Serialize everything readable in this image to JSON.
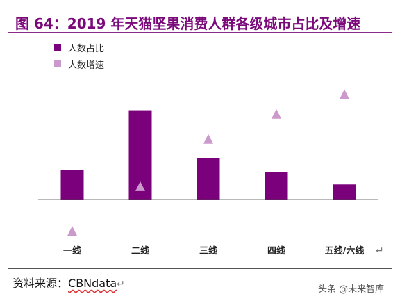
{
  "header": {
    "title": "图 64：2019 年天猫坚果消费人群各级城市占比及增速"
  },
  "chart_data": {
    "type": "bar",
    "categories": [
      "一线",
      "二线",
      "三线",
      "四线",
      "五线/六线"
    ],
    "series": [
      {
        "name": "人数占比",
        "type": "bar",
        "color": "#7b007b",
        "values": [
          0.33,
          1.0,
          0.46,
          0.31,
          0.17
        ]
      },
      {
        "name": "人数增速",
        "type": "scatter",
        "marker": "triangle",
        "color": "#cc99cc",
        "values": [
          -0.35,
          0.15,
          0.68,
          0.96,
          1.18
        ]
      }
    ],
    "ylim": [
      -0.45,
      1.3
    ],
    "grid": false,
    "legend_position": "top-left",
    "y_axis_labels_shown": false
  },
  "footer": {
    "source_label": "资料来源：",
    "source_value": "CBNdata",
    "watermark": "头条 @未来智库"
  }
}
